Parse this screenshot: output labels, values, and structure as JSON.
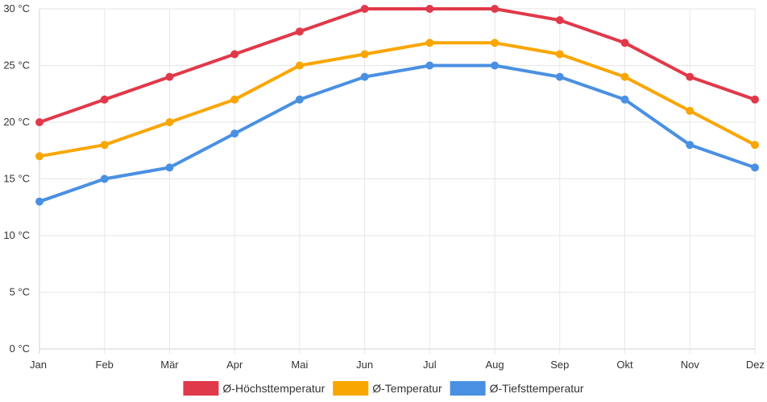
{
  "chart_data": {
    "type": "line",
    "title": "",
    "xlabel": "",
    "ylabel": "",
    "categories": [
      "Jan",
      "Feb",
      "Mär",
      "Apr",
      "Mai",
      "Jun",
      "Jul",
      "Aug",
      "Sep",
      "Okt",
      "Nov",
      "Dez"
    ],
    "ylim": [
      0,
      30
    ],
    "y_ticks": [
      0,
      5,
      10,
      15,
      20,
      25,
      30
    ],
    "y_unit": " °C",
    "grid": true,
    "legend_position": "bottom",
    "series": [
      {
        "name": "Ø-Höchsttemperatur",
        "color": "#e0394a",
        "values": [
          20,
          22,
          24,
          26,
          28,
          30,
          30,
          30,
          29,
          27,
          24,
          22
        ]
      },
      {
        "name": "Ø-Temperatur",
        "color": "#f9a602",
        "values": [
          17,
          18,
          20,
          22,
          25,
          26,
          27,
          27,
          26,
          24,
          21,
          18
        ]
      },
      {
        "name": "Ø-Tiefsttemperatur",
        "color": "#4a90e2",
        "values": [
          13,
          15,
          16,
          19,
          22,
          24,
          25,
          25,
          24,
          22,
          18,
          16
        ]
      }
    ]
  }
}
